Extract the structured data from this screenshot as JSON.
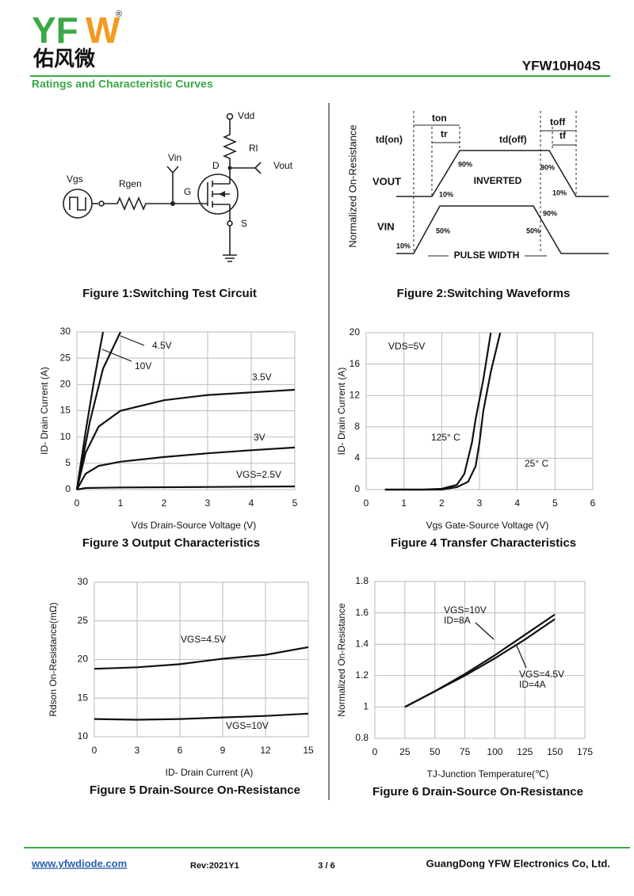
{
  "header": {
    "logo_left": "YF",
    "logo_right": "W",
    "registered": "®",
    "logo_subtitle": "佑风微",
    "part_number": "YFW10H04S",
    "section": "Ratings and Characteristic Curves"
  },
  "figure1": {
    "caption": "Figure 1:Switching Test Circuit",
    "labels": [
      "Vdd",
      "Rl",
      "Vin",
      "Vout",
      "D",
      "G",
      "S",
      "Vgs",
      "Rgen"
    ]
  },
  "figure2": {
    "caption": "Figure 2:Switching Waveforms",
    "labels": [
      "Normalized On-Resistance",
      "ton",
      "toff",
      "td(on)",
      "tr",
      "td(off)",
      "tf",
      "90%",
      "90%",
      "10%",
      "10%",
      "INVERTED",
      "VOUT",
      "VIN",
      "50%",
      "90%",
      "50%",
      "10%",
      "PULSE WIDTH"
    ]
  },
  "chart_data": [
    {
      "type": "line",
      "title": "Figure 3 Output Characteristics",
      "xlabel": "Vds Drain-Source Voltage (V)",
      "ylabel": "ID- Drain Current (A)",
      "xlim": [
        0,
        5
      ],
      "xticks": [
        0,
        1,
        2,
        3,
        4,
        5
      ],
      "ylim": [
        0,
        30
      ],
      "yticks": [
        0,
        5,
        10,
        15,
        20,
        25,
        30
      ],
      "grid": true,
      "series": [
        {
          "name": "4.5V",
          "color": "#111111",
          "x": [
            0,
            0.3,
            0.6,
            1.0
          ],
          "values": [
            0,
            13,
            23,
            30
          ]
        },
        {
          "name": "10V",
          "color": "#111111",
          "x": [
            0,
            0.2,
            0.4,
            0.6
          ],
          "values": [
            0,
            11,
            21,
            30
          ]
        },
        {
          "name": "3.5V",
          "color": "#111111",
          "x": [
            0,
            0.2,
            0.5,
            1,
            2,
            3,
            4,
            5
          ],
          "values": [
            0,
            7,
            12,
            15,
            17,
            18,
            18.5,
            19
          ]
        },
        {
          "name": "3V",
          "color": "#111111",
          "x": [
            0,
            0.2,
            0.5,
            1,
            2,
            3,
            4,
            5
          ],
          "values": [
            0,
            3,
            4.5,
            5.3,
            6.2,
            6.9,
            7.5,
            8
          ]
        },
        {
          "name": "VGS=2.5V",
          "color": "#111111",
          "x": [
            0,
            0.2,
            1,
            3,
            5
          ],
          "values": [
            0,
            0.3,
            0.4,
            0.5,
            0.6
          ]
        }
      ]
    },
    {
      "type": "line",
      "title": "Figure 4 Transfer Characteristics",
      "xlabel": "Vgs Gate-Source Voltage (V)",
      "ylabel": "ID- Drain Current (A)",
      "xlim": [
        0,
        6
      ],
      "xticks": [
        0,
        1,
        2,
        3,
        4,
        5,
        6
      ],
      "ylim": [
        0,
        20
      ],
      "yticks": [
        0,
        4,
        8,
        12,
        16,
        20
      ],
      "grid": true,
      "annotation": "VDS=5V",
      "series": [
        {
          "name": "125° C",
          "color": "#111111",
          "x": [
            0.5,
            1.5,
            2,
            2.4,
            2.6,
            2.8,
            2.9,
            3.1,
            3.3
          ],
          "values": [
            0,
            0,
            0.1,
            0.6,
            2,
            6,
            9,
            14,
            20
          ]
        },
        {
          "name": "25° C",
          "color": "#111111",
          "x": [
            0.5,
            2,
            2.4,
            2.7,
            2.9,
            3.0,
            3.1,
            3.3,
            3.55
          ],
          "values": [
            0,
            0,
            0.3,
            1,
            3,
            6,
            10,
            15,
            20
          ]
        }
      ]
    },
    {
      "type": "line",
      "title": "Figure 5 Drain-Source On-Resistance",
      "xlabel": "ID- Drain Current (A)",
      "ylabel": "Rdson On-Resistance(mΩ)",
      "xlim": [
        0,
        15
      ],
      "xticks": [
        0,
        3,
        6,
        9,
        12,
        15
      ],
      "ylim": [
        10,
        30
      ],
      "yticks": [
        10,
        15,
        20,
        25,
        30
      ],
      "grid": true,
      "series": [
        {
          "name": "VGS=4.5V",
          "color": "#111111",
          "x": [
            0,
            3,
            6,
            9,
            12,
            15
          ],
          "values": [
            18.8,
            19,
            19.4,
            20.1,
            20.6,
            21.6
          ]
        },
        {
          "name": "VGS=10V",
          "color": "#111111",
          "x": [
            0,
            3,
            6,
            9,
            12,
            15
          ],
          "values": [
            12.3,
            12.2,
            12.3,
            12.5,
            12.7,
            13
          ]
        }
      ]
    },
    {
      "type": "line",
      "title": "Figure 6 Drain-Source On-Resistance",
      "xlabel": "TJ-Junction Temperature(℃)",
      "ylabel": "Normalized On-Resistance",
      "xlim": [
        0,
        175
      ],
      "xticks": [
        0,
        25,
        50,
        75,
        100,
        125,
        150,
        175
      ],
      "ylim": [
        0.8,
        1.8
      ],
      "yticks": [
        0.8,
        1,
        1.2,
        1.4,
        1.6,
        1.8
      ],
      "grid": true,
      "series": [
        {
          "name": "VGS=10V",
          "note": "ID=8A",
          "color": "#111111",
          "x": [
            25,
            50,
            75,
            100,
            125,
            150
          ],
          "values": [
            1,
            1.1,
            1.21,
            1.33,
            1.46,
            1.59
          ]
        },
        {
          "name": "VGS=4.5V",
          "note": "ID=4A",
          "color": "#111111",
          "x": [
            25,
            50,
            75,
            100,
            125,
            150
          ],
          "values": [
            1,
            1.1,
            1.2,
            1.31,
            1.43,
            1.56
          ]
        }
      ]
    }
  ],
  "footer": {
    "website": "www.yfwdiode.com",
    "revision": "Rev:2021Y1",
    "page": "3 / 6",
    "company": "GuangDong YFW Electronics Co, Ltd."
  }
}
